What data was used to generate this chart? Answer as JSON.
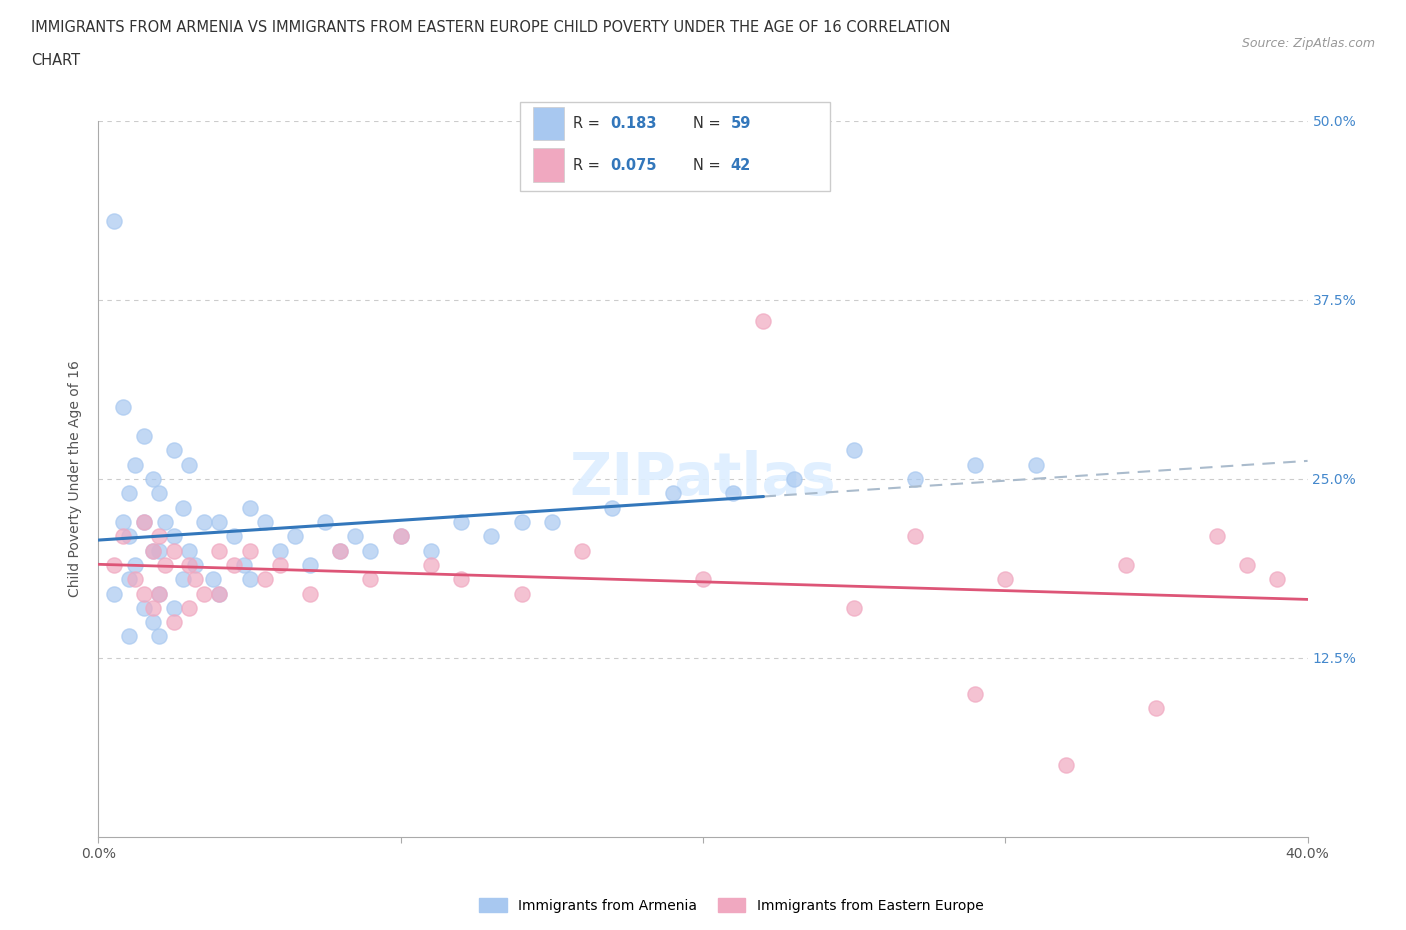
{
  "title_line1": "IMMIGRANTS FROM ARMENIA VS IMMIGRANTS FROM EASTERN EUROPE CHILD POVERTY UNDER THE AGE OF 16 CORRELATION",
  "title_line2": "CHART",
  "source_text": "Source: ZipAtlas.com",
  "ylabel": "Child Poverty Under the Age of 16",
  "xlim": [
    0.0,
    0.4
  ],
  "ylim": [
    0.0,
    0.5
  ],
  "ytick_positions": [
    0.125,
    0.25,
    0.375,
    0.5
  ],
  "ytick_labels": [
    "12.5%",
    "25.0%",
    "37.5%",
    "50.0%"
  ],
  "R_armenia": 0.183,
  "N_armenia": 59,
  "R_eastern": 0.075,
  "N_eastern": 42,
  "color_armenia": "#a8c8f0",
  "color_eastern": "#f0a8c0",
  "trendline_armenia_color": "#3377bb",
  "trendline_eastern_color": "#dd5577",
  "trendline_dashed_color": "#aabbcc",
  "watermark_color": "#ddeeff",
  "legend_label_armenia": "Immigrants from Armenia",
  "legend_label_eastern": "Immigrants from Eastern Europe",
  "armenia_x": [
    0.005,
    0.005,
    0.008,
    0.008,
    0.01,
    0.01,
    0.01,
    0.01,
    0.012,
    0.012,
    0.015,
    0.015,
    0.015,
    0.018,
    0.018,
    0.018,
    0.02,
    0.02,
    0.02,
    0.02,
    0.022,
    0.025,
    0.025,
    0.025,
    0.028,
    0.028,
    0.03,
    0.03,
    0.032,
    0.035,
    0.038,
    0.04,
    0.04,
    0.045,
    0.048,
    0.05,
    0.05,
    0.055,
    0.06,
    0.065,
    0.07,
    0.075,
    0.08,
    0.085,
    0.09,
    0.1,
    0.11,
    0.12,
    0.13,
    0.14,
    0.15,
    0.17,
    0.19,
    0.21,
    0.23,
    0.25,
    0.27,
    0.29,
    0.31
  ],
  "armenia_y": [
    0.43,
    0.17,
    0.3,
    0.22,
    0.24,
    0.21,
    0.18,
    0.14,
    0.26,
    0.19,
    0.28,
    0.22,
    0.16,
    0.25,
    0.2,
    0.15,
    0.24,
    0.2,
    0.17,
    0.14,
    0.22,
    0.27,
    0.21,
    0.16,
    0.23,
    0.18,
    0.26,
    0.2,
    0.19,
    0.22,
    0.18,
    0.22,
    0.17,
    0.21,
    0.19,
    0.23,
    0.18,
    0.22,
    0.2,
    0.21,
    0.19,
    0.22,
    0.2,
    0.21,
    0.2,
    0.21,
    0.2,
    0.22,
    0.21,
    0.22,
    0.22,
    0.23,
    0.24,
    0.24,
    0.25,
    0.27,
    0.25,
    0.26,
    0.26
  ],
  "eastern_x": [
    0.005,
    0.008,
    0.012,
    0.015,
    0.015,
    0.018,
    0.018,
    0.02,
    0.02,
    0.022,
    0.025,
    0.025,
    0.03,
    0.03,
    0.032,
    0.035,
    0.04,
    0.04,
    0.045,
    0.05,
    0.055,
    0.06,
    0.07,
    0.08,
    0.09,
    0.1,
    0.11,
    0.12,
    0.14,
    0.16,
    0.2,
    0.22,
    0.25,
    0.27,
    0.29,
    0.3,
    0.32,
    0.34,
    0.35,
    0.37,
    0.38,
    0.39
  ],
  "eastern_y": [
    0.19,
    0.21,
    0.18,
    0.22,
    0.17,
    0.2,
    0.16,
    0.21,
    0.17,
    0.19,
    0.2,
    0.15,
    0.19,
    0.16,
    0.18,
    0.17,
    0.2,
    0.17,
    0.19,
    0.2,
    0.18,
    0.19,
    0.17,
    0.2,
    0.18,
    0.21,
    0.19,
    0.18,
    0.17,
    0.2,
    0.18,
    0.36,
    0.16,
    0.21,
    0.1,
    0.18,
    0.05,
    0.19,
    0.09,
    0.21,
    0.19,
    0.18
  ]
}
